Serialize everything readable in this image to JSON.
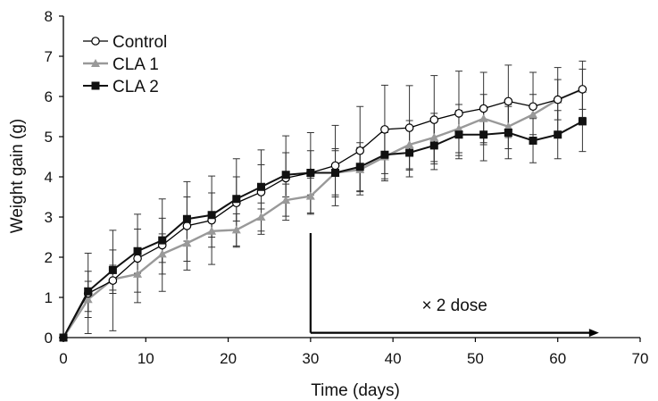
{
  "chart_data": {
    "type": "line",
    "title": "",
    "xlabel": "Time (days)",
    "ylabel": "Weight gain (g)",
    "xlim": [
      0,
      70
    ],
    "ylim": [
      0,
      8
    ],
    "xticks": [
      0,
      10,
      20,
      30,
      40,
      50,
      60,
      70
    ],
    "yticks": [
      0,
      1,
      2,
      3,
      4,
      5,
      6,
      7,
      8
    ],
    "grid": false,
    "legend_position": "top-left",
    "x": [
      0,
      3,
      6,
      9,
      12,
      15,
      18,
      21,
      24,
      27,
      30,
      33,
      36,
      39,
      42,
      45,
      48,
      51,
      54,
      57,
      60,
      63
    ],
    "series": [
      {
        "name": "Control",
        "marker": "open-circle",
        "color": "#000000",
        "values": [
          0,
          1.1,
          1.42,
          1.97,
          2.3,
          2.78,
          2.92,
          3.35,
          3.62,
          3.97,
          4.1,
          4.28,
          4.65,
          5.18,
          5.22,
          5.42,
          5.58,
          5.7,
          5.88,
          5.75,
          5.92,
          6.18
        ],
        "errors": [
          0,
          1.0,
          1.25,
          1.1,
          1.15,
          1.1,
          1.1,
          1.1,
          1.05,
          1.05,
          1.0,
          1.0,
          1.1,
          1.1,
          1.05,
          1.1,
          1.05,
          0.9,
          0.9,
          0.85,
          0.8,
          0.7
        ]
      },
      {
        "name": "CLA 1",
        "marker": "triangle",
        "color": "#999999",
        "values": [
          0,
          0.95,
          1.45,
          1.58,
          2.08,
          2.35,
          2.65,
          2.68,
          3.0,
          3.42,
          3.52,
          4.1,
          4.18,
          4.5,
          4.8,
          4.98,
          5.2,
          5.45,
          5.25,
          5.55,
          5.92,
          6.18
        ],
        "errors": [
          0,
          0.45,
          0.35,
          0.45,
          0.5,
          0.45,
          0.4,
          0.4,
          0.35,
          0.4,
          0.45,
          0.6,
          0.55,
          0.6,
          0.6,
          0.6,
          0.6,
          0.6,
          0.55,
          0.5,
          0.5,
          0.5
        ]
      },
      {
        "name": "CLA 2",
        "marker": "filled-square",
        "color": "#111111",
        "values": [
          0,
          1.15,
          1.68,
          2.15,
          2.42,
          2.95,
          3.05,
          3.45,
          3.75,
          4.05,
          4.1,
          4.1,
          4.25,
          4.55,
          4.6,
          4.78,
          5.05,
          5.05,
          5.1,
          4.9,
          5.05,
          5.38
        ],
        "errors": [
          0,
          0.5,
          0.5,
          0.55,
          0.55,
          0.55,
          0.55,
          0.55,
          0.55,
          0.55,
          0.55,
          0.55,
          0.6,
          0.6,
          0.6,
          0.6,
          0.6,
          0.65,
          0.65,
          0.55,
          0.6,
          0.75
        ]
      }
    ],
    "annotation": {
      "text": "× 2 dose",
      "x_start": 30,
      "x_end": 65,
      "y_top": 2.6,
      "y": 0.12
    }
  }
}
